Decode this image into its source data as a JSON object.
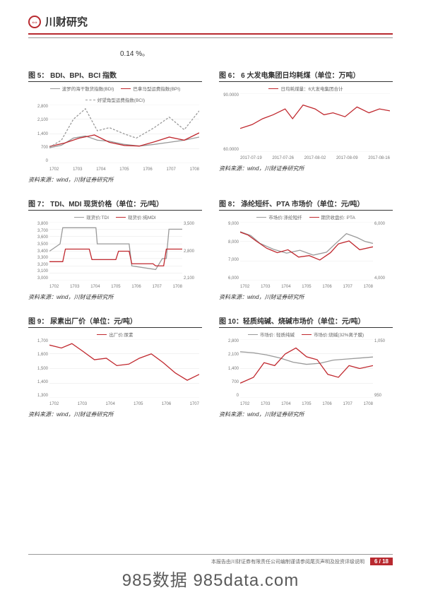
{
  "header": {
    "brand": "川财研究"
  },
  "topnote": "0.14 %。",
  "source_text": "资料来源：wind，川财证券研究所",
  "colors": {
    "red": "#c0282e",
    "gray": "#9a9a9a",
    "dash": "#9a9a9a",
    "grid": "#e5e5e5",
    "text": "#333333"
  },
  "footer": {
    "text": "本报告由川财证券有限责任公司编制谨请参阅尾页声明及投资评级说明",
    "page": "6 / 18"
  },
  "watermark": "985数据 985data.com",
  "charts": [
    {
      "title": "图 5：  BDI、BPI、BCI 指数",
      "legend": [
        {
          "label": "波罗的海干散货指数(BDI)",
          "color": "#9a9a9a",
          "dash": "solid"
        },
        {
          "label": "巴拿马型运费指数(BPI)",
          "color": "#c0282e",
          "dash": "solid"
        },
        {
          "label": "好望角型运费指数(BCI)",
          "color": "#9a9a9a",
          "dash": "dashed"
        }
      ],
      "ylim": [
        0,
        2800
      ],
      "yticks": [
        "2,800",
        "2,100",
        "1,400",
        "700",
        "0"
      ],
      "xticks": [
        "1702",
        "1703",
        "1704",
        "1705",
        "1706",
        "1707",
        "1708"
      ],
      "series": [
        {
          "color": "#9a9a9a",
          "dash": "solid",
          "pts": [
            [
              0,
              740
            ],
            [
              0.08,
              860
            ],
            [
              0.16,
              1200
            ],
            [
              0.24,
              1300
            ],
            [
              0.32,
              1100
            ],
            [
              0.4,
              1050
            ],
            [
              0.5,
              900
            ],
            [
              0.6,
              820
            ],
            [
              0.7,
              900
            ],
            [
              0.8,
              1000
            ],
            [
              0.9,
              1100
            ],
            [
              1,
              1250
            ]
          ]
        },
        {
          "color": "#c0282e",
          "dash": "solid",
          "pts": [
            [
              0,
              800
            ],
            [
              0.1,
              960
            ],
            [
              0.2,
              1200
            ],
            [
              0.3,
              1350
            ],
            [
              0.4,
              1000
            ],
            [
              0.5,
              850
            ],
            [
              0.6,
              820
            ],
            [
              0.7,
              1020
            ],
            [
              0.8,
              1250
            ],
            [
              0.9,
              1100
            ],
            [
              1,
              1450
            ]
          ]
        },
        {
          "color": "#9a9a9a",
          "dash": "dashed",
          "pts": [
            [
              0,
              760
            ],
            [
              0.08,
              1100
            ],
            [
              0.16,
              2100
            ],
            [
              0.24,
              2600
            ],
            [
              0.32,
              1550
            ],
            [
              0.4,
              1700
            ],
            [
              0.5,
              1400
            ],
            [
              0.58,
              1200
            ],
            [
              0.7,
              1700
            ],
            [
              0.8,
              2200
            ],
            [
              0.9,
              1600
            ],
            [
              1,
              2500
            ]
          ]
        }
      ]
    },
    {
      "title": "图 6：  6 大发电集团日均耗煤（单位：万吨）",
      "legend": [
        {
          "label": "日均耗煤量：6大发电集团合计",
          "color": "#c0282e",
          "dash": "solid"
        }
      ],
      "ylim": [
        60,
        90
      ],
      "yticks": [
        "90.0000",
        "60.0000"
      ],
      "ylabels_pos": "sparse",
      "xticks": [
        "2017-07-19",
        "2017-07-26",
        "2017-08-02",
        "2017-08-09",
        "2017-08-16"
      ],
      "series": [
        {
          "color": "#c0282e",
          "dash": "solid",
          "pts": [
            [
              0,
              72
            ],
            [
              0.08,
              74
            ],
            [
              0.15,
              77
            ],
            [
              0.22,
              79
            ],
            [
              0.3,
              82
            ],
            [
              0.35,
              77
            ],
            [
              0.42,
              84
            ],
            [
              0.5,
              82
            ],
            [
              0.56,
              79
            ],
            [
              0.62,
              80
            ],
            [
              0.7,
              78
            ],
            [
              0.78,
              83
            ],
            [
              0.86,
              80
            ],
            [
              0.93,
              82
            ],
            [
              1,
              81
            ]
          ]
        }
      ]
    },
    {
      "title": "图 7：  TDI、MDI 现货价格（单位：元/吨）",
      "legend": [
        {
          "label": "现货价:TDI",
          "color": "#9a9a9a",
          "dash": "solid"
        },
        {
          "label": "现货价:纯MDI",
          "color": "#c0282e",
          "dash": "solid"
        }
      ],
      "ylim": [
        3000,
        3800
      ],
      "yticks": [
        "3,800",
        "3,700",
        "3,600",
        "3,500",
        "3,400",
        "3,300",
        "3,200",
        "3,100",
        "3,000"
      ],
      "ylim_r": [
        2100,
        3500
      ],
      "yticks_r": [
        "3,500",
        "2,800",
        "2,100"
      ],
      "xticks": [
        "1702",
        "1703",
        "1704",
        "1705",
        "1706",
        "1707",
        "1708"
      ],
      "series": [
        {
          "color": "#9a9a9a",
          "dash": "solid",
          "axis": "l",
          "pts": [
            [
              0,
              3400
            ],
            [
              0.08,
              3500
            ],
            [
              0.1,
              3720
            ],
            [
              0.35,
              3720
            ],
            [
              0.36,
              3500
            ],
            [
              0.6,
              3500
            ],
            [
              0.62,
              3200
            ],
            [
              0.8,
              3150
            ],
            [
              0.85,
              3300
            ],
            [
              0.88,
              3300
            ],
            [
              0.9,
              3700
            ],
            [
              1,
              3700
            ]
          ]
        },
        {
          "color": "#c0282e",
          "dash": "solid",
          "axis": "r",
          "pts": [
            [
              0,
              2550
            ],
            [
              0.1,
              2550
            ],
            [
              0.12,
              2850
            ],
            [
              0.3,
              2850
            ],
            [
              0.32,
              2600
            ],
            [
              0.5,
              2600
            ],
            [
              0.52,
              2800
            ],
            [
              0.6,
              2800
            ],
            [
              0.62,
              2500
            ],
            [
              0.78,
              2500
            ],
            [
              0.8,
              2450
            ],
            [
              0.86,
              2450
            ],
            [
              0.88,
              2850
            ],
            [
              1,
              2850
            ]
          ]
        }
      ]
    },
    {
      "title": "图 8：  涤纶短纤、PTA 市场价（单位：元/吨）",
      "legend": [
        {
          "label": "市场价:涤纶短纤",
          "color": "#9a9a9a",
          "dash": "solid"
        },
        {
          "label": "期货收盘价: PTA",
          "color": "#c0282e",
          "dash": "solid"
        }
      ],
      "ylim": [
        6000,
        9000
      ],
      "yticks": [
        "9,000",
        "8,000",
        "7,000",
        "6,000"
      ],
      "ylim_r": [
        4000,
        6000
      ],
      "yticks_r": [
        "6,000",
        "4,000"
      ],
      "xticks": [
        "1702",
        "1703",
        "1704",
        "1705",
        "1706",
        "1707",
        "1708"
      ],
      "series": [
        {
          "color": "#9a9a9a",
          "dash": "solid",
          "axis": "l",
          "pts": [
            [
              0,
              8500
            ],
            [
              0.08,
              8300
            ],
            [
              0.15,
              7900
            ],
            [
              0.25,
              7600
            ],
            [
              0.35,
              7400
            ],
            [
              0.45,
              7550
            ],
            [
              0.55,
              7300
            ],
            [
              0.65,
              7450
            ],
            [
              0.72,
              7900
            ],
            [
              0.8,
              8400
            ],
            [
              0.88,
              8200
            ],
            [
              0.94,
              8000
            ],
            [
              1,
              7900
            ]
          ]
        },
        {
          "color": "#c0282e",
          "dash": "solid",
          "axis": "r",
          "pts": [
            [
              0,
              5650
            ],
            [
              0.06,
              5550
            ],
            [
              0.12,
              5350
            ],
            [
              0.2,
              5100
            ],
            [
              0.28,
              4950
            ],
            [
              0.36,
              5050
            ],
            [
              0.44,
              4800
            ],
            [
              0.52,
              4850
            ],
            [
              0.6,
              4700
            ],
            [
              0.68,
              4950
            ],
            [
              0.74,
              5250
            ],
            [
              0.82,
              5350
            ],
            [
              0.9,
              5050
            ],
            [
              1,
              5150
            ]
          ]
        }
      ]
    },
    {
      "title": "图 9：  尿素出厂价（单位：元/吨）",
      "legend": [
        {
          "label": "出厂价:尿素",
          "color": "#c0282e",
          "dash": "solid"
        }
      ],
      "ylim": [
        1300,
        1700
      ],
      "yticks": [
        "1,700",
        "1,600",
        "1,500",
        "1,400",
        "1,300"
      ],
      "xticks": [
        "1702",
        "1703",
        "1704",
        "1705",
        "1706",
        "1707"
      ],
      "series": [
        {
          "color": "#c0282e",
          "dash": "solid",
          "pts": [
            [
              0,
              1660
            ],
            [
              0.08,
              1640
            ],
            [
              0.15,
              1670
            ],
            [
              0.22,
              1620
            ],
            [
              0.3,
              1560
            ],
            [
              0.38,
              1570
            ],
            [
              0.45,
              1520
            ],
            [
              0.53,
              1530
            ],
            [
              0.6,
              1570
            ],
            [
              0.68,
              1600
            ],
            [
              0.76,
              1540
            ],
            [
              0.84,
              1470
            ],
            [
              0.92,
              1420
            ],
            [
              1,
              1460
            ]
          ]
        }
      ]
    },
    {
      "title": "图 10：轻质纯碱、烧碱市场价（单位：元/吨）",
      "legend": [
        {
          "label": "市场价: 轻质纯碱",
          "color": "#9a9a9a",
          "dash": "solid"
        },
        {
          "label": "市场价:烧碱(32%离子膜)",
          "color": "#c0282e",
          "dash": "solid"
        }
      ],
      "ylim": [
        0,
        2800
      ],
      "yticks": [
        "2,800",
        "2,100",
        "1,400",
        "700",
        "0"
      ],
      "ylim_r": [
        950,
        1050
      ],
      "yticks_r": [
        "1,050",
        "950"
      ],
      "xticks": [
        "1702",
        "1703",
        "1704",
        "1705",
        "1706",
        "1707",
        "1708"
      ],
      "series": [
        {
          "color": "#9a9a9a",
          "dash": "solid",
          "axis": "l",
          "pts": [
            [
              0,
              2200
            ],
            [
              0.1,
              2150
            ],
            [
              0.2,
              2050
            ],
            [
              0.3,
              1900
            ],
            [
              0.4,
              1700
            ],
            [
              0.5,
              1600
            ],
            [
              0.6,
              1650
            ],
            [
              0.7,
              1800
            ],
            [
              0.8,
              1850
            ],
            [
              0.9,
              1900
            ],
            [
              1,
              1950
            ]
          ]
        },
        {
          "color": "#c0282e",
          "dash": "solid",
          "axis": "r",
          "pts": [
            [
              0,
              975
            ],
            [
              0.1,
              985
            ],
            [
              0.18,
              1010
            ],
            [
              0.26,
              1005
            ],
            [
              0.34,
              1025
            ],
            [
              0.42,
              1035
            ],
            [
              0.5,
              1020
            ],
            [
              0.58,
              1015
            ],
            [
              0.66,
              990
            ],
            [
              0.74,
              985
            ],
            [
              0.82,
              1005
            ],
            [
              0.9,
              1000
            ],
            [
              1,
              1005
            ]
          ]
        }
      ]
    }
  ]
}
